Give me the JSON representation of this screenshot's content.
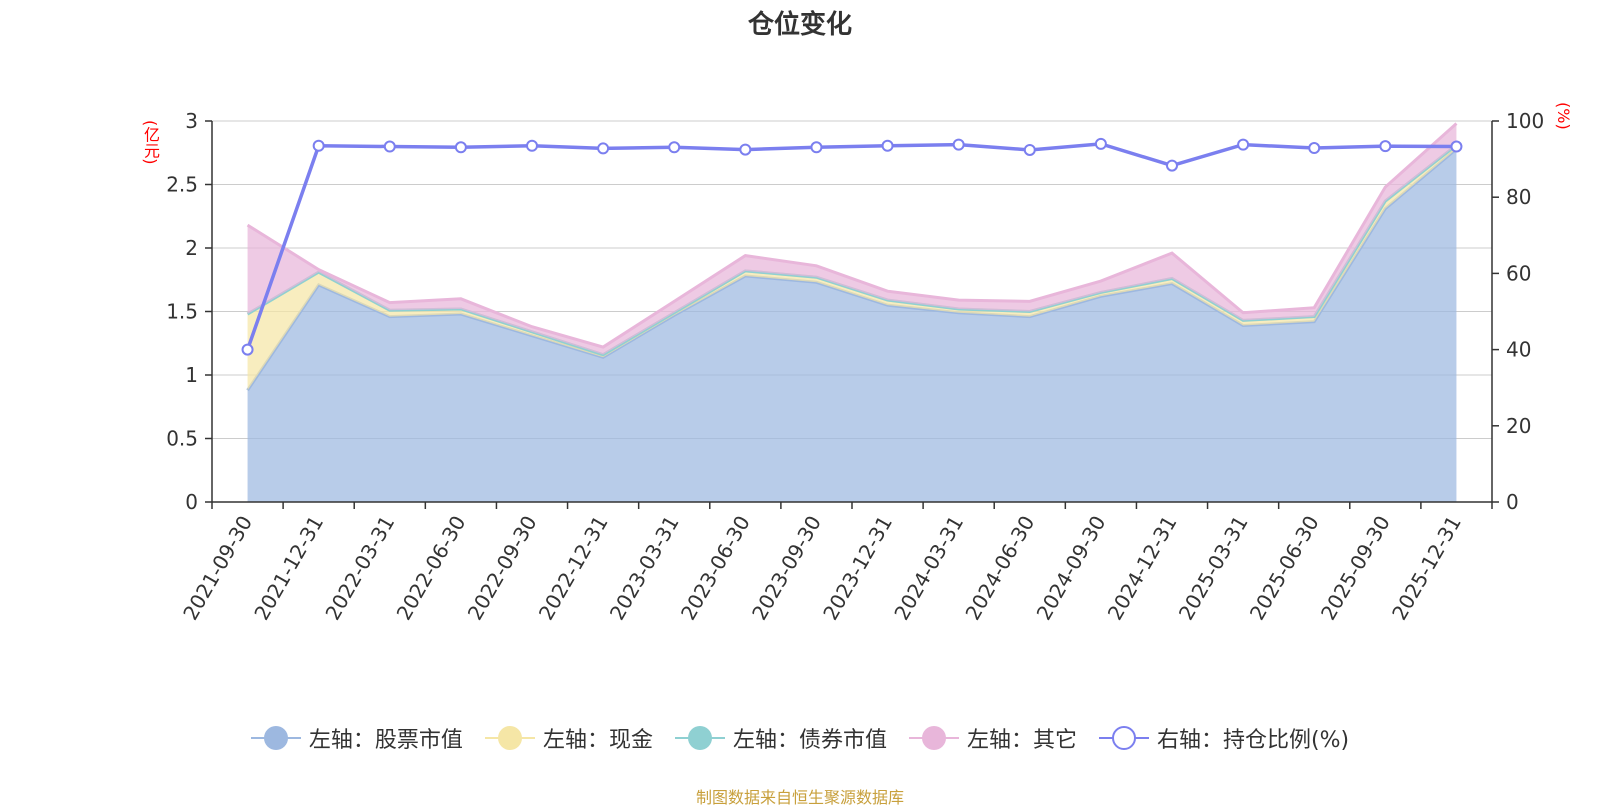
{
  "title": "仓位变化",
  "unit_left": "(亿元)",
  "unit_right": "(%)",
  "source": "制图数据来自恒生聚源数据库",
  "colors": {
    "stock": "#9db8e0",
    "cash": "#f5e6a6",
    "bond": "#8fd0d2",
    "other": "#e8b6da",
    "ratio": "#7b7fef",
    "axis": "#333333",
    "grid": "#cccccc",
    "unit": "#ff0000"
  },
  "chart_data": {
    "type": "area",
    "title": "仓位变化",
    "categories": [
      "2021-09-30",
      "2021-12-31",
      "2022-03-31",
      "2022-06-30",
      "2022-09-30",
      "2022-12-31",
      "2023-03-31",
      "2023-06-30",
      "2023-09-30",
      "2023-12-31",
      "2024-03-31",
      "2024-06-30",
      "2024-09-30",
      "2024-12-31",
      "2025-03-31",
      "2025-06-30",
      "2025-09-30",
      "2025-12-31"
    ],
    "left_axis": {
      "unit": "(亿元)",
      "min": 0,
      "max": 3,
      "ticks": [
        0,
        0.5,
        1,
        1.5,
        2,
        2.5,
        3
      ],
      "tick_labels": [
        "0",
        "0.5",
        "1",
        "1.5",
        "2",
        "2.5",
        "3"
      ]
    },
    "right_axis": {
      "unit": "(%)",
      "min": 0,
      "max": 100,
      "ticks": [
        0,
        20,
        40,
        60,
        80,
        100
      ],
      "tick_labels": [
        "0",
        "20",
        "40",
        "60",
        "80",
        "100"
      ]
    },
    "grid": true,
    "legend_position": "bottom",
    "stacked_series": [
      {
        "name": "左轴：股票市值",
        "values": [
          0.88,
          1.71,
          1.46,
          1.48,
          1.31,
          1.14,
          1.47,
          1.78,
          1.73,
          1.55,
          1.49,
          1.46,
          1.62,
          1.72,
          1.39,
          1.42,
          2.31,
          2.78
        ]
      },
      {
        "name": "左轴：现金",
        "values": [
          0.6,
          0.1,
          0.05,
          0.04,
          0.03,
          0.02,
          0.02,
          0.04,
          0.04,
          0.04,
          0.03,
          0.04,
          0.03,
          0.04,
          0.04,
          0.04,
          0.06,
          0.03
        ]
      },
      {
        "name": "左轴：债券市值",
        "values": [
          0,
          0,
          0,
          0,
          0,
          0,
          0,
          0,
          0,
          0,
          0,
          0,
          0,
          0,
          0,
          0,
          0,
          0
        ]
      },
      {
        "name": "左轴：其它",
        "values": [
          0.7,
          0.02,
          0.06,
          0.08,
          0.04,
          0.06,
          0.09,
          0.12,
          0.09,
          0.07,
          0.07,
          0.08,
          0.09,
          0.2,
          0.06,
          0.07,
          0.11,
          0.17
        ]
      }
    ],
    "line_series": {
      "name": "右轴：持仓比例(%)",
      "axis": "right",
      "values": [
        40,
        93.5,
        93.3,
        93.1,
        93.5,
        92.8,
        93.1,
        92.5,
        93.1,
        93.5,
        93.8,
        92.4,
        94,
        88.3,
        93.8,
        92.9,
        93.4,
        93.3
      ]
    }
  },
  "legend": [
    {
      "label": "左轴：股票市值",
      "color_key": "stock",
      "style": "filled"
    },
    {
      "label": "左轴：现金",
      "color_key": "cash",
      "style": "filled"
    },
    {
      "label": "左轴：债券市值",
      "color_key": "bond",
      "style": "filled"
    },
    {
      "label": "左轴：其它",
      "color_key": "other",
      "style": "filled"
    },
    {
      "label": "右轴：持仓比例(%)",
      "color_key": "ratio",
      "style": "hollow"
    }
  ]
}
